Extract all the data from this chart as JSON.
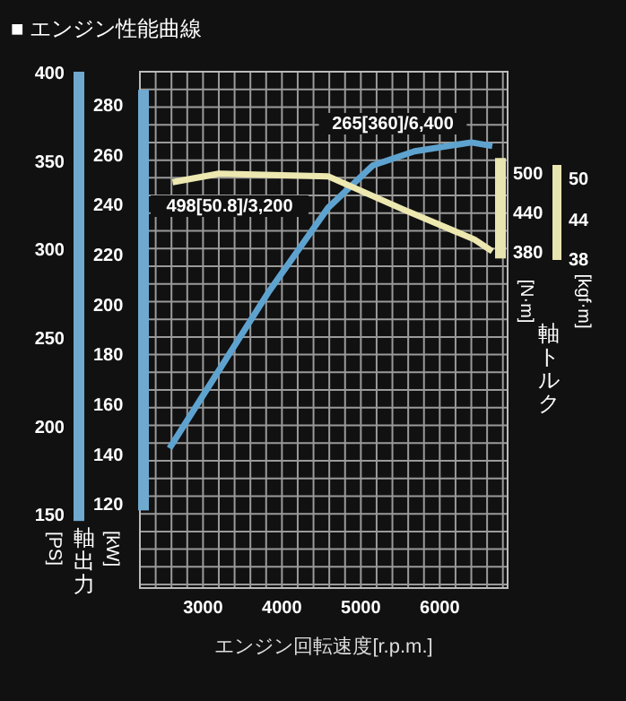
{
  "chart_data": {
    "type": "line",
    "title": "■ エンジン性能曲線",
    "xlabel": "エンジン回転速度[r.p.m.]",
    "ylabel": "[PS]",
    "y2label": "[kW]",
    "y3label": "[N·m]",
    "xlim": [
      2200,
      6860
    ],
    "xticks": [
      3000,
      4000,
      5000,
      6000
    ],
    "ylim": [
      108,
      400
    ],
    "yticks": [
      150,
      200,
      250,
      300,
      350,
      400
    ],
    "y2lim": [
      86,
      293
    ],
    "y2ticks": [
      120,
      140,
      160,
      180,
      200,
      220,
      240,
      260,
      280
    ],
    "y3lim": [
      -132,
      653
    ],
    "y3ticks": [
      380,
      440,
      500
    ],
    "grid": true,
    "marker": "none",
    "line_style": "solid",
    "series": [
      {
        "color": "#5ea3cf",
        "axis": "y",
        "x": [
          2575,
          3825,
          4584,
          5152,
          5682,
          6400,
          6666
        ],
        "values": [
          187,
          275,
          323,
          347,
          355,
          360,
          358
        ]
      },
      {
        "color": "#ece8b0",
        "axis": "y3",
        "x": [
          2614,
          3200,
          4584,
          5530,
          6439,
          6666
        ],
        "values": [
          485,
          498,
          494,
          444,
          398,
          380
        ]
      }
    ],
    "annotations": [
      "498[50.8]/3,200",
      "265[360]/6,400",
      "軸出力",
      "軸トルク",
      "[kgf·m]",
      "50",
      "44",
      "38"
    ]
  }
}
